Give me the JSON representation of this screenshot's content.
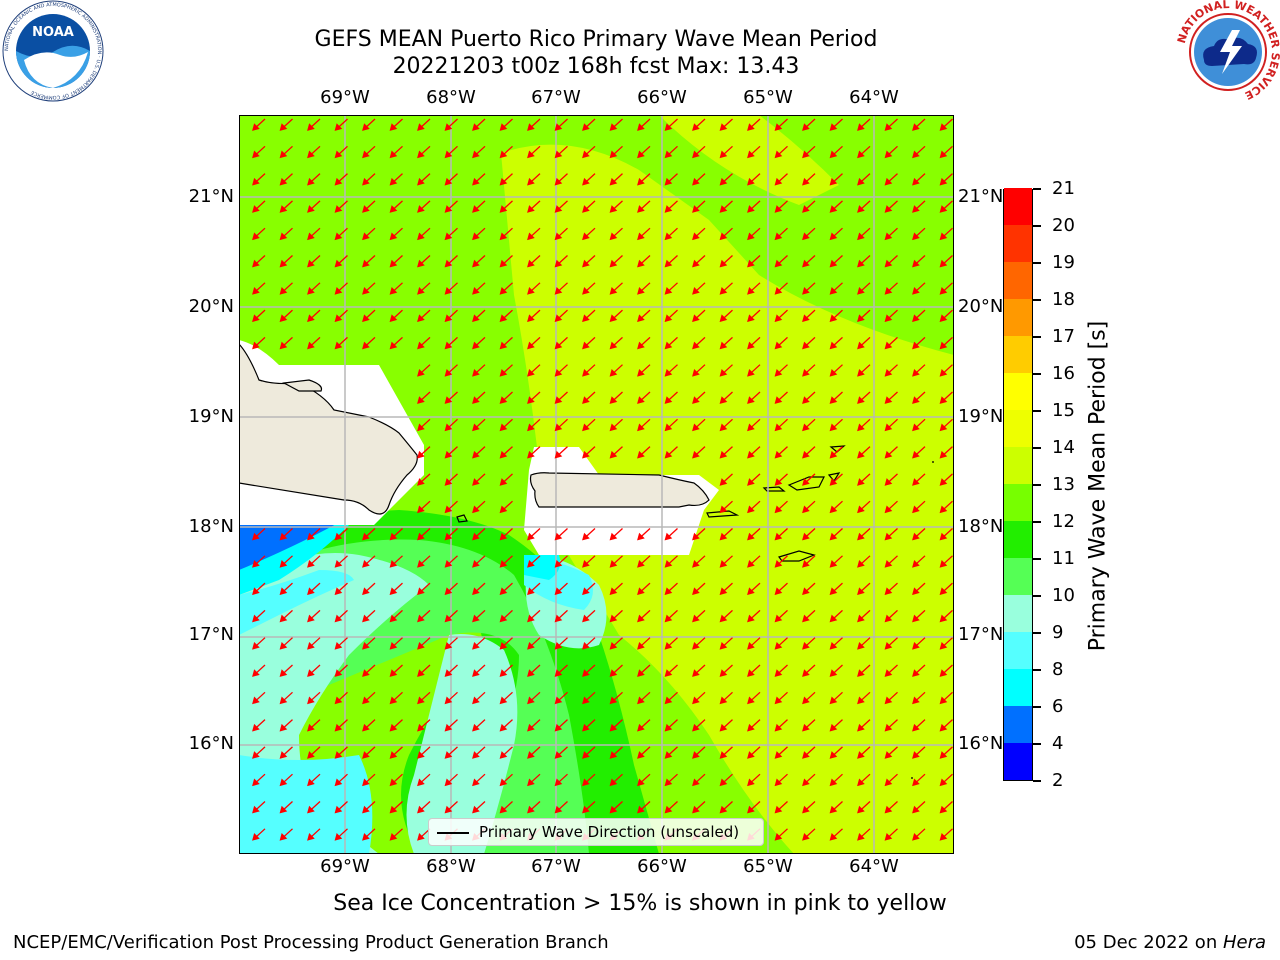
{
  "title": {
    "line1": "GEFS MEAN Puerto Rico Primary Wave Mean Period",
    "line2": "20221203 t00z 168h fcst   Max: 13.43"
  },
  "logos": {
    "left": "noaa-logo",
    "left_text": "NOAA",
    "left_ring_text": "NATIONAL OCEANIC AND ATMOSPHERIC ADMINISTRATION · U.S. DEPARTMENT OF COMMERCE",
    "right": "nws-logo",
    "right_ring_text": "NATIONAL WEATHER SERVICE"
  },
  "map": {
    "lon_labels": [
      "69°W",
      "68°W",
      "67°W",
      "66°W",
      "65°W",
      "64°W"
    ],
    "lat_labels": [
      "21°N",
      "20°N",
      "19°N",
      "18°N",
      "17°N",
      "16°N"
    ],
    "lon_extent": [
      -69.99,
      -63.25
    ],
    "lat_extent": [
      15.0,
      21.75
    ],
    "grid": true,
    "arrow_color": "#ff0000",
    "arrow_direction": "southwest",
    "land_color": "#eeeadc"
  },
  "colorbar": {
    "title": "Primary Wave Mean Period [s]",
    "ticks": [
      "2",
      "4",
      "6",
      "8",
      "9",
      "10",
      "11",
      "12",
      "13",
      "14",
      "15",
      "16",
      "17",
      "18",
      "19",
      "20",
      "21"
    ],
    "colors": [
      "#0000ff",
      "#0070ff",
      "#00ffff",
      "#55ffff",
      "#99ffdd",
      "#55ff55",
      "#22ee00",
      "#77ff00",
      "#ccff00",
      "#eeff00",
      "#ffff00",
      "#ffcc00",
      "#ff9900",
      "#ff6600",
      "#ff3300",
      "#ff0000"
    ]
  },
  "legend": {
    "label": "Primary Wave Direction (unscaled)"
  },
  "notes": {
    "sea_ice": "Sea Ice Concentration > 15% is shown in pink to yellow",
    "footer_left": "NCEP/EMC/Verification Post Processing Product Generation Branch",
    "footer_date": "05 Dec 2022 on ",
    "footer_machine": "Hera"
  }
}
